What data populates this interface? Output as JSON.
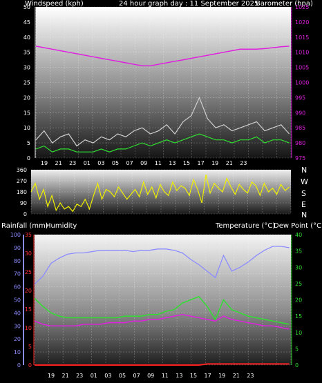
{
  "header": {
    "windspeed_label": "Windspeed (kph)",
    "title": "24 hour graph day : 11 September 2025",
    "barometer_label": "Barometer (hpa)",
    "rainfall_label": "Rainfall (mm)",
    "humidity_label": "Humidity",
    "temperature_label": "Temperature (°C)",
    "dewpoint_label": "Dew Point (°C)"
  },
  "compass": [
    "N",
    "W",
    "S",
    "E",
    "N"
  ],
  "colors": {
    "wind_gust": "#d0d0d0",
    "wind_avg": "#30e030",
    "barometer": "#e020e0",
    "direction": "#f0f000",
    "humidity": "#8c8cff",
    "temperature": "#30e030",
    "dewpoint": "#e020e0",
    "rain": "#ff2020",
    "left_axis_text": "#ffffff",
    "baro_axis_text": "#e020e0",
    "rain_axis_text": "#ff3030",
    "humidity_axis_text": "#8c8cff",
    "temp_axis_text": "#30e030"
  },
  "chart_data": [
    {
      "type": "line",
      "name": "wind-and-barometer",
      "x_ticks": [
        "19",
        "21",
        "23",
        "01",
        "03",
        "05",
        "07",
        "09",
        "11",
        "13",
        "15",
        "17",
        "19",
        "21",
        "23"
      ],
      "y_left": {
        "label": "Windspeed (kph)",
        "range": [
          0,
          50
        ],
        "ticks": [
          0,
          5,
          10,
          15,
          20,
          25,
          30,
          35,
          40,
          45,
          50
        ]
      },
      "y_right": {
        "label": "Barometer (hpa)",
        "range": [
          975,
          1025
        ],
        "ticks": [
          975,
          980,
          985,
          990,
          995,
          1000,
          1005,
          1010,
          1015,
          1020,
          1025
        ]
      },
      "series": [
        {
          "id": "gust",
          "axis": "left",
          "x": [
            17,
            18,
            19,
            20,
            21,
            22,
            23,
            0,
            1,
            2,
            3,
            4,
            5,
            6,
            7,
            8,
            9,
            10,
            11,
            12,
            13,
            14,
            15,
            16,
            17,
            18,
            19,
            20,
            21,
            22,
            23,
            0
          ],
          "values": [
            6,
            9,
            5,
            7,
            8,
            4,
            6,
            5,
            7,
            6,
            8,
            7,
            9,
            10,
            8,
            9,
            11,
            8,
            12,
            14,
            20,
            13,
            10,
            11,
            9,
            10,
            11,
            12,
            9,
            10,
            11,
            8
          ]
        },
        {
          "id": "avg",
          "axis": "left",
          "x": [
            17,
            18,
            19,
            20,
            21,
            22,
            23,
            0,
            1,
            2,
            3,
            4,
            5,
            6,
            7,
            8,
            9,
            10,
            11,
            12,
            13,
            14,
            15,
            16,
            17,
            18,
            19,
            20,
            21,
            22,
            23,
            0
          ],
          "values": [
            3,
            4,
            2,
            3,
            3,
            2,
            2,
            2,
            3,
            2,
            3,
            3,
            4,
            5,
            4,
            5,
            6,
            5,
            6,
            7,
            8,
            7,
            6,
            6,
            5,
            6,
            6,
            7,
            5,
            6,
            6,
            5
          ]
        },
        {
          "id": "barometer",
          "axis": "right",
          "x": [
            17,
            18,
            19,
            20,
            21,
            22,
            23,
            0,
            1,
            2,
            3,
            4,
            5,
            6,
            7,
            8,
            9,
            10,
            11,
            12,
            13,
            14,
            15,
            16,
            17,
            18,
            19,
            20,
            21,
            22,
            23,
            0
          ],
          "values": [
            1012,
            1011.5,
            1011,
            1010.5,
            1010,
            1009.5,
            1009,
            1008.5,
            1008,
            1007.5,
            1007,
            1006.5,
            1006,
            1005.5,
            1005.5,
            1006,
            1006.5,
            1007,
            1007.5,
            1008,
            1008.5,
            1009,
            1009.5,
            1010,
            1010.5,
            1011,
            1011,
            1011,
            1011.2,
            1011.5,
            1011.8,
            1012
          ]
        }
      ]
    },
    {
      "type": "line",
      "name": "wind-direction",
      "y_left": {
        "range": [
          0,
          360
        ],
        "ticks": [
          0,
          90,
          180,
          270,
          360
        ]
      },
      "series": [
        {
          "id": "direction",
          "x": [
            17,
            17.5,
            18,
            18.5,
            19,
            19.5,
            20,
            20.5,
            21,
            21.5,
            22,
            22.5,
            23,
            23.5,
            0,
            0.5,
            1,
            1.5,
            2,
            2.5,
            3,
            3.5,
            4,
            4.5,
            5,
            5.5,
            6,
            6.5,
            7,
            7.5,
            8,
            8.5,
            9,
            9.5,
            10,
            10.5,
            11,
            11.5,
            12,
            12.5,
            13,
            13.5,
            14,
            14.5,
            15,
            15.5,
            16,
            16.5,
            17,
            17.5,
            18,
            18.5,
            19,
            19.5,
            20,
            20.5,
            21,
            21.5,
            22,
            22.5,
            23,
            23.5,
            0
          ],
          "values": [
            180,
            250,
            120,
            200,
            60,
            150,
            30,
            90,
            40,
            60,
            20,
            80,
            60,
            120,
            40,
            150,
            250,
            120,
            200,
            180,
            140,
            220,
            170,
            120,
            160,
            200,
            140,
            260,
            160,
            220,
            130,
            240,
            180,
            150,
            260,
            190,
            230,
            210,
            150,
            280,
            200,
            90,
            320,
            170,
            250,
            210,
            180,
            290,
            220,
            160,
            240,
            200,
            170,
            260,
            230,
            150,
            250,
            180,
            210,
            160,
            240,
            190,
            220
          ]
        }
      ]
    },
    {
      "type": "line",
      "name": "rain-humidity-temperature",
      "x_ticks": [
        "19",
        "21",
        "23",
        "01",
        "03",
        "05",
        "07",
        "09",
        "11",
        "13",
        "15",
        "17",
        "19",
        "21",
        "23"
      ],
      "y_humidity": {
        "label": "Humidity",
        "range": [
          0,
          100
        ],
        "ticks": [
          0,
          10,
          20,
          30,
          40,
          50,
          60,
          70,
          80,
          90,
          100
        ]
      },
      "y_rain": {
        "label": "Rainfall (mm)",
        "range": [
          0,
          35
        ],
        "ticks": [
          0,
          5,
          10,
          15,
          20,
          25,
          30,
          35
        ]
      },
      "y_temp": {
        "label": "Temperature (°C)",
        "range": [
          0,
          40
        ],
        "ticks": [
          0,
          5,
          10,
          15,
          20,
          25,
          30,
          35,
          40
        ]
      },
      "series": [
        {
          "id": "humidity",
          "axis": "humidity",
          "x": [
            17,
            18,
            19,
            20,
            21,
            22,
            23,
            0,
            1,
            2,
            3,
            4,
            5,
            6,
            7,
            8,
            9,
            10,
            11,
            12,
            13,
            14,
            15,
            16,
            17,
            18,
            19,
            20,
            21,
            22,
            23,
            0
          ],
          "values": [
            62,
            68,
            78,
            82,
            85,
            86,
            86,
            87,
            88,
            88,
            88,
            88,
            87,
            88,
            88,
            89,
            89,
            88,
            86,
            81,
            77,
            72,
            67,
            84,
            72,
            75,
            79,
            84,
            88,
            91,
            91,
            90
          ]
        },
        {
          "id": "temperature",
          "axis": "temp",
          "x": [
            17,
            18,
            19,
            20,
            21,
            22,
            23,
            0,
            1,
            2,
            3,
            4,
            5,
            6,
            7,
            8,
            9,
            10,
            11,
            12,
            13,
            14,
            15,
            16,
            17,
            18,
            19,
            20,
            21,
            22,
            23,
            0
          ],
          "values": [
            20.5,
            18,
            16,
            15,
            14.5,
            14.5,
            14.5,
            14.5,
            14.5,
            14.5,
            14.5,
            15,
            15,
            15,
            15.5,
            15.5,
            16.5,
            17,
            19,
            20,
            21,
            18,
            14,
            20,
            17,
            16,
            15,
            14.5,
            14,
            13.5,
            13,
            12.5
          ]
        },
        {
          "id": "dewpoint",
          "axis": "temp",
          "x": [
            17,
            18,
            19,
            20,
            21,
            22,
            23,
            0,
            1,
            2,
            3,
            4,
            5,
            6,
            7,
            8,
            9,
            10,
            11,
            12,
            13,
            14,
            15,
            16,
            17,
            18,
            19,
            20,
            21,
            22,
            23,
            0
          ],
          "values": [
            13.5,
            12.5,
            12,
            12,
            12,
            12,
            12.5,
            12.5,
            12.5,
            13,
            13,
            13,
            13.5,
            13.5,
            14,
            14,
            14.5,
            15,
            15.5,
            15,
            14.5,
            14,
            13.5,
            15,
            14,
            13.5,
            13,
            12.5,
            12,
            12,
            11.5,
            11
          ]
        },
        {
          "id": "rain",
          "axis": "rain",
          "x": [
            17,
            18,
            19,
            20,
            21,
            22,
            23,
            0,
            1,
            2,
            3,
            4,
            5,
            6,
            7,
            8,
            9,
            10,
            11,
            12,
            13,
            14,
            15,
            16,
            17,
            18,
            19,
            20,
            21,
            22,
            23,
            0
          ],
          "values": [
            0,
            0,
            0,
            0,
            0,
            0,
            0,
            0,
            0,
            0,
            0,
            0,
            0,
            0,
            0,
            0,
            0,
            0,
            0,
            0,
            0,
            0.3,
            0.3,
            0.3,
            0.3,
            0.3,
            0.3,
            0.3,
            0.3,
            0.3,
            0.3,
            0.3
          ]
        }
      ]
    }
  ]
}
